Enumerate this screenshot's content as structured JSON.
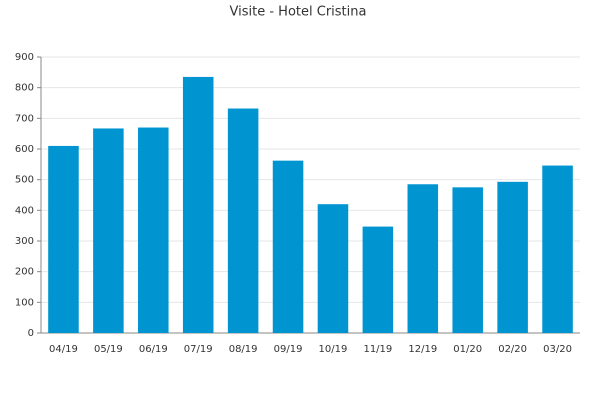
{
  "chart_data": {
    "type": "bar",
    "title": "Visite - Hotel Cristina",
    "categories": [
      "04/19",
      "05/19",
      "06/19",
      "07/19",
      "08/19",
      "09/19",
      "10/19",
      "11/19",
      "12/19",
      "01/20",
      "02/20",
      "03/20"
    ],
    "values": [
      610,
      667,
      670,
      835,
      732,
      562,
      420,
      347,
      485,
      475,
      493,
      546
    ],
    "color": "#0095d0",
    "ylim": [
      0,
      900
    ],
    "yticks": [
      0,
      100,
      200,
      300,
      400,
      500,
      600,
      700,
      800,
      900
    ],
    "grid": true
  }
}
